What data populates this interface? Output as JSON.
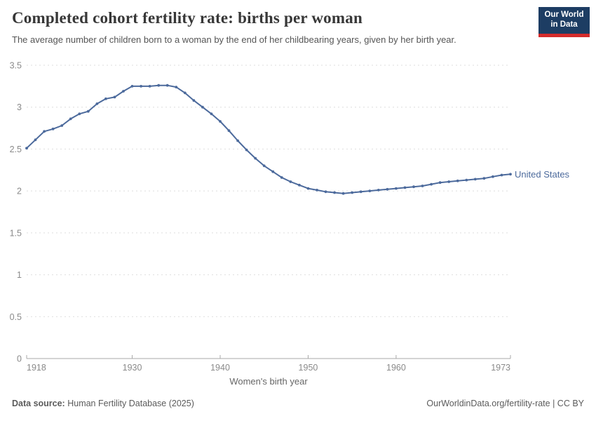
{
  "header": {
    "logo": {
      "line1": "Our World",
      "line2": "in Data",
      "bg": "#1d3d63",
      "bar": "#d42b2b"
    }
  },
  "chart_data": {
    "type": "line",
    "title": "Completed cohort fertility rate: births per woman",
    "subtitle": "The average number of children born to a woman by the end of her childbearing years, given by her birth year.",
    "xlabel": "Women's birth year",
    "ylabel": "",
    "xlim": [
      1918,
      1973
    ],
    "ylim": [
      0,
      3.5
    ],
    "x_ticks": [
      1918,
      1930,
      1940,
      1950,
      1960,
      1973
    ],
    "y_ticks": [
      0,
      0.5,
      1,
      1.5,
      2,
      2.5,
      3,
      3.5
    ],
    "grid": "horizontal-dashed",
    "legend_position": "end-of-line-label",
    "series": [
      {
        "name": "United States",
        "color": "#4C6A9C",
        "x": [
          1918,
          1919,
          1920,
          1921,
          1922,
          1923,
          1924,
          1925,
          1926,
          1927,
          1928,
          1929,
          1930,
          1931,
          1932,
          1933,
          1934,
          1935,
          1936,
          1937,
          1938,
          1939,
          1940,
          1941,
          1942,
          1943,
          1944,
          1945,
          1946,
          1947,
          1948,
          1949,
          1950,
          1951,
          1952,
          1953,
          1954,
          1955,
          1956,
          1957,
          1958,
          1959,
          1960,
          1961,
          1962,
          1963,
          1964,
          1965,
          1966,
          1967,
          1968,
          1969,
          1970,
          1971,
          1972,
          1973
        ],
        "values": [
          2.51,
          2.61,
          2.71,
          2.74,
          2.78,
          2.86,
          2.92,
          2.95,
          3.04,
          3.1,
          3.12,
          3.19,
          3.25,
          3.25,
          3.25,
          3.26,
          3.26,
          3.24,
          3.17,
          3.08,
          3.0,
          2.92,
          2.83,
          2.72,
          2.6,
          2.49,
          2.39,
          2.3,
          2.23,
          2.16,
          2.11,
          2.07,
          2.03,
          2.01,
          1.99,
          1.98,
          1.97,
          1.98,
          1.99,
          2.0,
          2.01,
          2.02,
          2.03,
          2.04,
          2.05,
          2.06,
          2.08,
          2.1,
          2.11,
          2.12,
          2.13,
          2.14,
          2.15,
          2.17,
          2.19,
          2.2
        ]
      }
    ]
  },
  "footer": {
    "source_label": "Data source:",
    "source_value": "Human Fertility Database (2025)",
    "right": "OurWorldinData.org/fertility-rate | CC BY"
  }
}
